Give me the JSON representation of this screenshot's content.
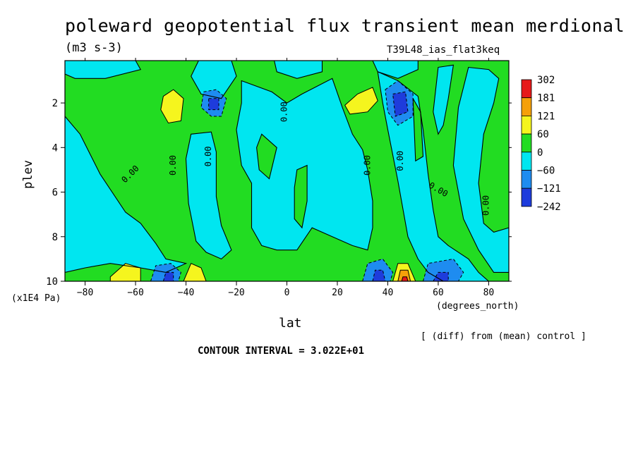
{
  "header": {
    "title": "poleward geopotential flux transient mean merdional",
    "units": "(m3 s-3)",
    "experiment": "T39L48_ias_flat3keq"
  },
  "footer": {
    "diff_note": "[ (diff) from (mean) control ]",
    "contour_interval": "CONTOUR INTERVAL = 3.022E+01"
  },
  "colors": {
    "c_302": "#e61919",
    "c_181": "#f5a00a",
    "c_121": "#f5f51e",
    "c_60": "#22dc22",
    "c_0": "#00e6f0",
    "c_neg60": "#1e8cf0",
    "c_neg121": "#1e3cdc",
    "background": "#ffffff"
  },
  "chart_data": {
    "type": "contour",
    "title": "poleward geopotential flux transient mean merdional",
    "xlabel": "lat",
    "x_unit": "(degrees_north)",
    "ylabel": "plev",
    "y_unit": "(x1E4 Pa)",
    "xlim": [
      -88,
      88
    ],
    "ylim": [
      0.1,
      10
    ],
    "y_inverted": true,
    "x_ticks": [
      -80,
      -60,
      -40,
      -20,
      0,
      20,
      40,
      60,
      80
    ],
    "y_ticks": [
      2,
      4,
      6,
      8,
      10
    ],
    "contour_interval": 30.22,
    "contour_line_labels": [
      "0.00",
      "0.00",
      "0.00",
      "0.00",
      "0.00",
      "0.00",
      "0.00",
      "0.00",
      "0.00"
    ],
    "colorbar": {
      "levels": [
        "302",
        "181",
        "121",
        "60",
        "0",
        "−60",
        "−121",
        "−242"
      ],
      "colors": [
        "#e61919",
        "#f5a00a",
        "#f5f51e",
        "#22dc22",
        "#00e6f0",
        "#1e8cf0",
        "#1e3cdc"
      ]
    },
    "features": [
      {
        "kind": "max",
        "lat": -45,
        "plev": 2.2,
        "value": 60
      },
      {
        "kind": "min",
        "lat": -30,
        "plev": 2.0,
        "value": -60
      },
      {
        "kind": "max",
        "lat": 29,
        "plev": 2.0,
        "value": 121
      },
      {
        "kind": "min",
        "lat": 46,
        "plev": 2.0,
        "value": -121
      },
      {
        "kind": "max",
        "lat": -64,
        "plev": 9.7,
        "value": 121
      },
      {
        "kind": "min",
        "lat": -47,
        "plev": 9.7,
        "value": -121
      },
      {
        "kind": "max",
        "lat": -37,
        "plev": 9.7,
        "value": 121
      },
      {
        "kind": "min",
        "lat": 37,
        "plev": 9.7,
        "value": -121
      },
      {
        "kind": "max",
        "lat": 47,
        "plev": 9.8,
        "value": 302
      },
      {
        "kind": "min",
        "lat": 61,
        "plev": 9.7,
        "value": -121
      }
    ]
  }
}
